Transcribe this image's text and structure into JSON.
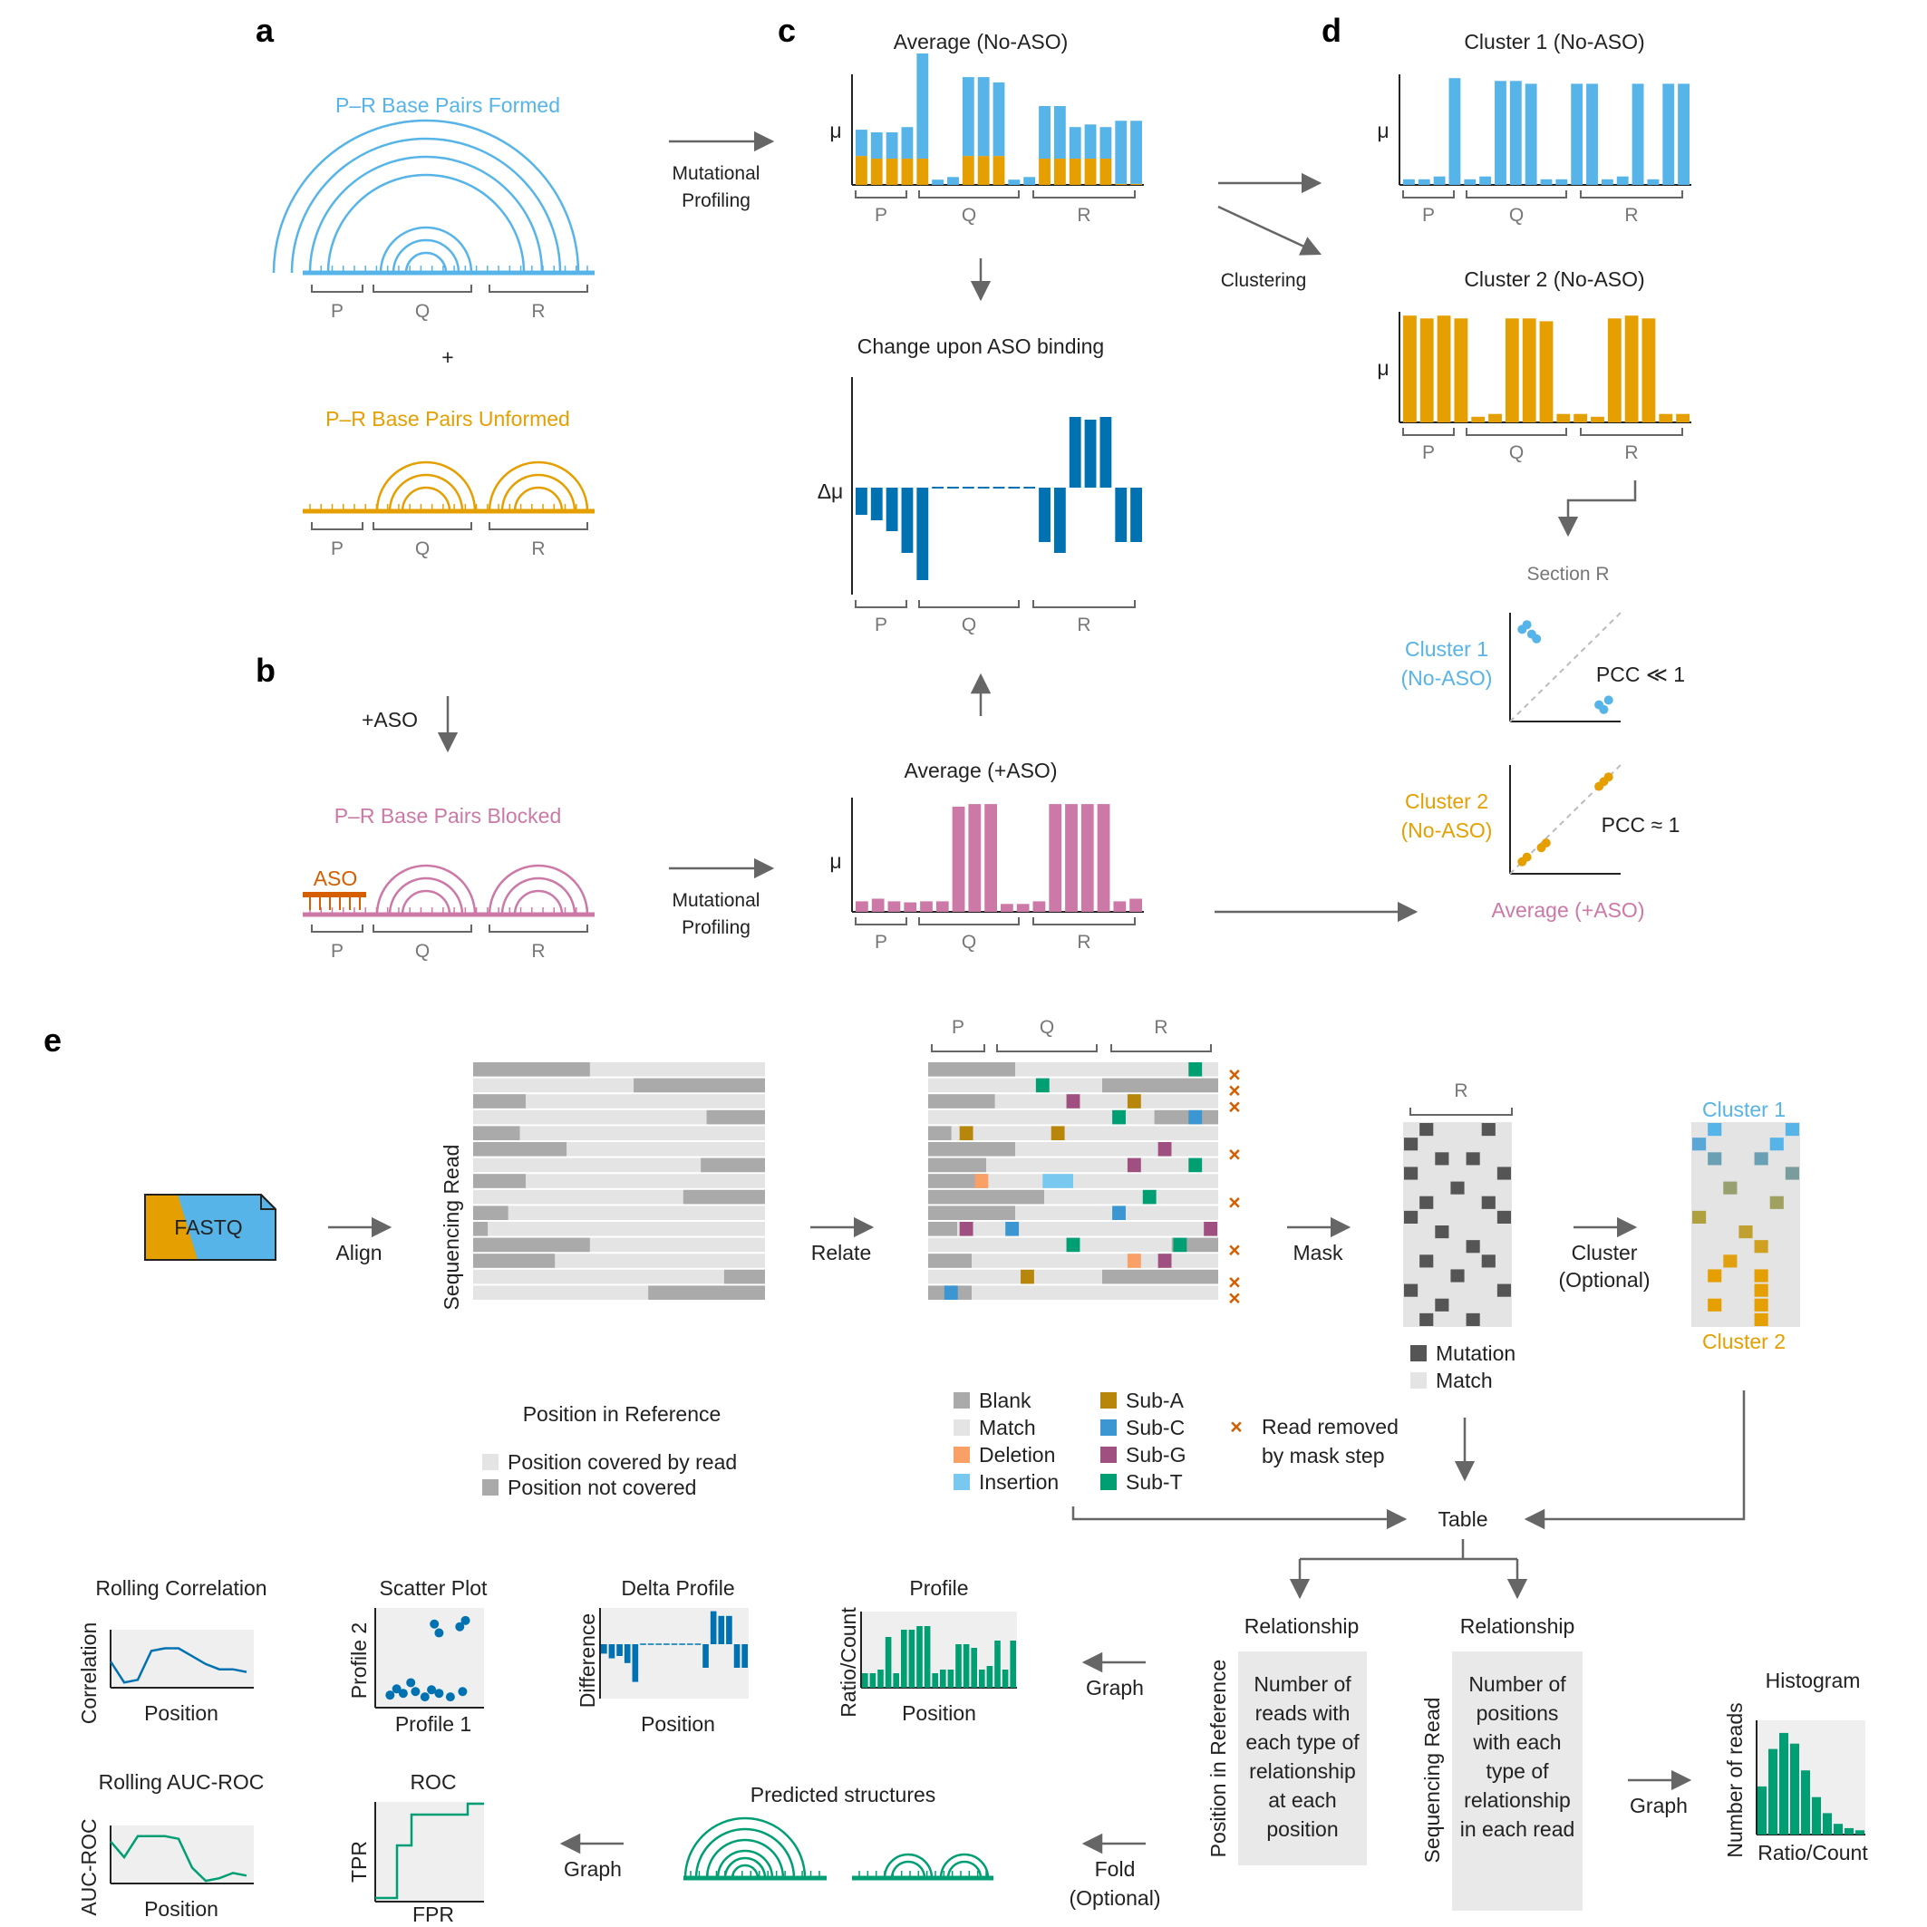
{
  "panels": {
    "a": "a",
    "b": "b",
    "c": "c",
    "d": "d",
    "e": "e"
  },
  "colors": {
    "formed": "#56b4e9",
    "unformed": "#e69f00",
    "blocked": "#cc79a7",
    "aso": "#d55e00",
    "delta": "#0072b2",
    "green": "#009e73",
    "gray_dark": "#aaaaaa",
    "gray_light": "#e4e4e4",
    "mut": "#555555",
    "arrow": "#666666",
    "axis": "#222222",
    "sec": "#777777"
  },
  "sections": {
    "p": "P",
    "q": "Q",
    "r": "R"
  },
  "a": {
    "formed_title": "P–R Base Pairs Formed",
    "plus": "+",
    "unformed_title": "P–R Base Pairs Unformed"
  },
  "b": {
    "aso_step": "+ASO",
    "blocked_title": "P–R Base Pairs Blocked",
    "aso_label": "ASO"
  },
  "c": {
    "mut_profiling_1a": "Mutational",
    "mut_profiling_1b": "Profiling",
    "mut_profiling_2a": "Mutational",
    "mut_profiling_2b": "Profiling",
    "avg_no_aso": "Average (No-ASO)",
    "change_title": "Change upon ASO binding",
    "avg_plus_aso": "Average (+ASO)",
    "mu": "μ",
    "delta_mu": "Δμ"
  },
  "d": {
    "cluster1_title": "Cluster 1 (No-ASO)",
    "cluster2_title": "Cluster 2 (No-ASO)",
    "clustering": "Clustering",
    "section_r": "Section R",
    "cl1_line1": "Cluster 1",
    "cl1_line2": "(No-ASO)",
    "pcc1": "PCC ≪ 1",
    "cl2_line1": "Cluster 2",
    "cl2_line2": "(No-ASO)",
    "pcc2": "PCC ≈ 1",
    "avg_plus_aso": "Average (+ASO)"
  },
  "e": {
    "fastq": "FASTQ",
    "align": "Align",
    "relate": "Relate",
    "mask": "Mask",
    "cluster_a": "Cluster",
    "cluster_b": "(Optional)",
    "seq_read": "Sequencing Read",
    "pos_ref": "Position in Reference",
    "legend_covered": "Position covered by read",
    "legend_not": "Position not covered",
    "rel_legend": {
      "blank": "Blank",
      "match": "Match",
      "deletion": "Deletion",
      "insertion": "Insertion",
      "sub_a": "Sub-A",
      "sub_c": "Sub-C",
      "sub_g": "Sub-G",
      "sub_t": "Sub-T"
    },
    "removed_a": "Read removed",
    "removed_b": "by mask step",
    "x_mark": "×",
    "mutation": "Mutation",
    "match": "Match",
    "cluster1": "Cluster 1",
    "cluster2": "Cluster 2",
    "table": "Table",
    "relationship_1": "Relationship",
    "relationship_2": "Relationship",
    "box1": [
      "Number of",
      "reads with",
      "each type of",
      "relationship",
      "at each",
      "position"
    ],
    "box2": [
      "Number of",
      "positions",
      "with each",
      "type of",
      "relationship",
      "in each read"
    ],
    "box1_side": "Position in Reference",
    "box2_side": "Sequencing Read",
    "graph_1": "Graph",
    "graph_2": "Graph",
    "graph_3": "Graph",
    "fold_a": "Fold",
    "fold_b": "(Optional)",
    "histogram": "Histogram",
    "hist_y": "Number of reads",
    "hist_x": "Ratio/Count",
    "profile": "Profile",
    "profile_y": "Ratio/Count",
    "profile_x": "Position",
    "delta_profile": "Delta Profile",
    "delta_y": "Difference",
    "delta_x": "Position",
    "scatter": "Scatter Plot",
    "scatter_y": "Profile 2",
    "scatter_x": "Profile 1",
    "rolling_corr": "Rolling Correlation",
    "corr_y": "Correlation",
    "corr_x": "Position",
    "rolling_auc": "Rolling AUC-ROC",
    "auc_y": "AUC-ROC",
    "auc_x": "Position",
    "roc": "ROC",
    "roc_y": "TPR",
    "roc_x": "FPR",
    "predicted": "Predicted structures"
  },
  "chart_data": [
    {
      "name": "Average (No-ASO)",
      "type": "bar",
      "stacked": true,
      "series": [
        {
          "name": "formed",
          "values": [
            0.5,
            0.5,
            0.5,
            0.6,
            2.0,
            0.1,
            0.15,
            1.5,
            1.5,
            1.4,
            0.1,
            0.15,
            1.0,
            1.0,
            0.6,
            0.65,
            0.6,
            1.2,
            1.2
          ]
        },
        {
          "name": "unformed",
          "values": [
            0.55,
            0.5,
            0.5,
            0.5,
            0.5,
            0,
            0,
            0.55,
            0.55,
            0.55,
            0,
            0,
            0.5,
            0.5,
            0.5,
            0.5,
            0.5,
            0.02,
            0.02
          ]
        }
      ]
    },
    {
      "name": "Change upon ASO binding",
      "type": "bar",
      "values": [
        -0.5,
        -0.6,
        -0.8,
        -1.2,
        -1.7,
        -0.02,
        -0.02,
        -0.02,
        -0.02,
        -0.02,
        -0.02,
        -0.02,
        -1.0,
        -1.2,
        1.3,
        1.25,
        1.3,
        -1.0,
        -1.0
      ]
    },
    {
      "name": "Average (+ASO)",
      "type": "bar",
      "values": [
        0.2,
        0.25,
        0.2,
        0.18,
        0.2,
        0.2,
        2.0,
        2.05,
        2.05,
        0.15,
        0.15,
        0.2,
        2.05,
        2.05,
        2.05,
        2.05,
        0.2,
        0.25
      ]
    },
    {
      "name": "Cluster 1 (No-ASO)",
      "type": "bar",
      "values": [
        0.1,
        0.1,
        0.15,
        1.9,
        0.1,
        0.15,
        1.85,
        1.85,
        1.8,
        0.1,
        0.1,
        1.8,
        1.8,
        0.1,
        0.15,
        1.8,
        0.1,
        1.8,
        1.8
      ]
    },
    {
      "name": "Cluster 2 (No-ASO)",
      "type": "bar",
      "values": [
        1.9,
        1.85,
        1.9,
        1.85,
        0.1,
        0.15,
        1.85,
        1.85,
        1.8,
        0.15,
        0.15,
        0.1,
        1.85,
        1.9,
        1.85,
        0.15,
        0.15
      ]
    },
    {
      "name": "Section R cluster 1",
      "type": "scatter",
      "x": [
        0.05,
        0.1,
        0.15,
        0.2,
        0.85,
        0.95,
        0.9
      ],
      "y": [
        0.9,
        0.95,
        0.85,
        0.8,
        0.1,
        0.15,
        0.05
      ]
    },
    {
      "name": "Section R cluster 2",
      "type": "scatter",
      "x": [
        0.05,
        0.1,
        0.25,
        0.3,
        0.85,
        0.95,
        0.9
      ],
      "y": [
        0.05,
        0.1,
        0.2,
        0.25,
        0.85,
        0.95,
        0.9
      ]
    }
  ]
}
